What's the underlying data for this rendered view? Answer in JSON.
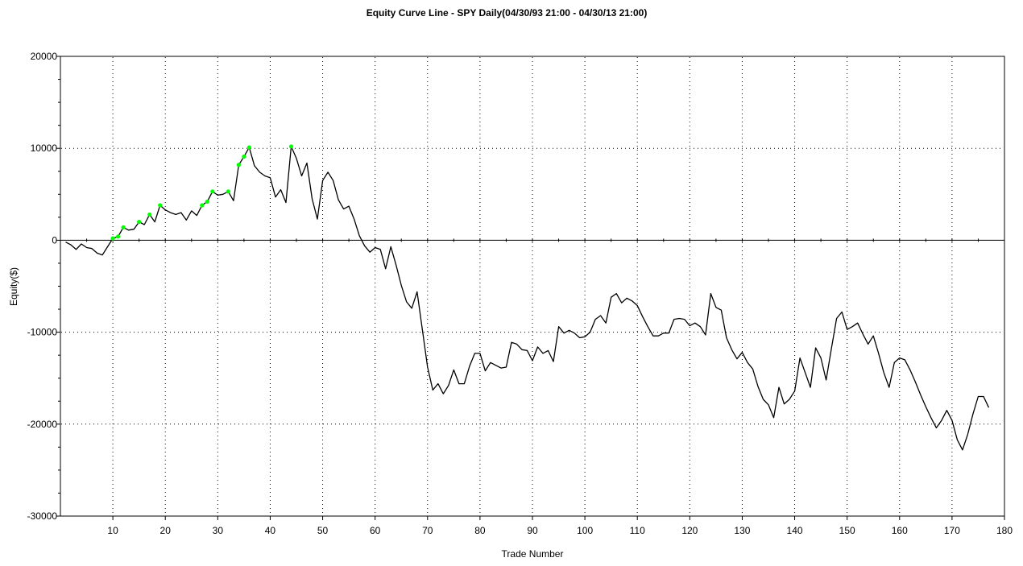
{
  "chart_data": {
    "type": "line",
    "title": "Equity Curve Line - SPY Daily(04/30/93 21:00 - 04/30/13 21:00)",
    "xlabel": "Trade Number",
    "ylabel": "Equity($)",
    "xlim": [
      0,
      180
    ],
    "ylim": [
      -30000,
      20000
    ],
    "x_ticks": [
      10,
      20,
      30,
      40,
      50,
      60,
      70,
      80,
      90,
      100,
      110,
      120,
      130,
      140,
      150,
      160,
      170,
      180
    ],
    "y_ticks": [
      20000,
      10000,
      0,
      -10000,
      -20000,
      -30000
    ],
    "grid": "dotted",
    "line_color": "#000000",
    "highlight_color": "#00ff00",
    "series": [
      {
        "values": [
          [
            1,
            -200
          ],
          [
            2,
            -500
          ],
          [
            3,
            -1000
          ],
          [
            4,
            -400
          ],
          [
            5,
            -800
          ],
          [
            6,
            -900
          ],
          [
            7,
            -1400
          ],
          [
            8,
            -1600
          ],
          [
            9,
            -700
          ],
          [
            10,
            200
          ],
          [
            11,
            400
          ],
          [
            12,
            1400
          ],
          [
            13,
            1100
          ],
          [
            14,
            1200
          ],
          [
            15,
            2000
          ],
          [
            16,
            1700
          ],
          [
            17,
            2800
          ],
          [
            18,
            2000
          ],
          [
            19,
            3800
          ],
          [
            20,
            3300
          ],
          [
            21,
            3000
          ],
          [
            22,
            2800
          ],
          [
            23,
            3000
          ],
          [
            24,
            2200
          ],
          [
            25,
            3200
          ],
          [
            26,
            2700
          ],
          [
            27,
            3800
          ],
          [
            28,
            4200
          ],
          [
            29,
            5300
          ],
          [
            30,
            4900
          ],
          [
            31,
            5000
          ],
          [
            32,
            5300
          ],
          [
            33,
            4300
          ],
          [
            34,
            8200
          ],
          [
            35,
            9100
          ],
          [
            36,
            10100
          ],
          [
            37,
            8100
          ],
          [
            38,
            7400
          ],
          [
            39,
            7000
          ],
          [
            40,
            6800
          ],
          [
            41,
            4700
          ],
          [
            42,
            5500
          ],
          [
            43,
            4100
          ],
          [
            44,
            10200
          ],
          [
            45,
            8900
          ],
          [
            46,
            7000
          ],
          [
            47,
            8400
          ],
          [
            48,
            4500
          ],
          [
            49,
            2300
          ],
          [
            50,
            6500
          ],
          [
            51,
            7400
          ],
          [
            52,
            6500
          ],
          [
            53,
            4400
          ],
          [
            54,
            3400
          ],
          [
            55,
            3700
          ],
          [
            56,
            2300
          ],
          [
            57,
            500
          ],
          [
            58,
            -600
          ],
          [
            59,
            -1300
          ],
          [
            60,
            -800
          ],
          [
            61,
            -1000
          ],
          [
            62,
            -3100
          ],
          [
            63,
            -700
          ],
          [
            64,
            -2700
          ],
          [
            65,
            -4900
          ],
          [
            66,
            -6700
          ],
          [
            67,
            -7400
          ],
          [
            68,
            -5600
          ],
          [
            69,
            -9700
          ],
          [
            70,
            -13800
          ],
          [
            71,
            -16300
          ],
          [
            72,
            -15600
          ],
          [
            73,
            -16700
          ],
          [
            74,
            -15800
          ],
          [
            75,
            -14100
          ],
          [
            76,
            -15600
          ],
          [
            77,
            -15600
          ],
          [
            78,
            -13700
          ],
          [
            79,
            -12300
          ],
          [
            80,
            -12300
          ],
          [
            81,
            -14200
          ],
          [
            82,
            -13300
          ],
          [
            83,
            -13600
          ],
          [
            84,
            -13900
          ],
          [
            85,
            -13800
          ],
          [
            86,
            -11100
          ],
          [
            87,
            -11300
          ],
          [
            88,
            -11900
          ],
          [
            89,
            -12000
          ],
          [
            90,
            -13100
          ],
          [
            91,
            -11600
          ],
          [
            92,
            -12300
          ],
          [
            93,
            -12000
          ],
          [
            94,
            -13200
          ],
          [
            95,
            -9400
          ],
          [
            96,
            -10100
          ],
          [
            97,
            -9800
          ],
          [
            98,
            -10100
          ],
          [
            99,
            -10600
          ],
          [
            100,
            -10500
          ],
          [
            101,
            -10000
          ],
          [
            102,
            -8600
          ],
          [
            103,
            -8200
          ],
          [
            104,
            -9000
          ],
          [
            105,
            -6200
          ],
          [
            106,
            -5800
          ],
          [
            107,
            -6800
          ],
          [
            108,
            -6300
          ],
          [
            109,
            -6600
          ],
          [
            110,
            -7100
          ],
          [
            111,
            -8300
          ],
          [
            112,
            -9400
          ],
          [
            113,
            -10400
          ],
          [
            114,
            -10400
          ],
          [
            115,
            -10100
          ],
          [
            116,
            -10100
          ],
          [
            117,
            -8600
          ],
          [
            118,
            -8500
          ],
          [
            119,
            -8600
          ],
          [
            120,
            -9300
          ],
          [
            121,
            -9000
          ],
          [
            122,
            -9400
          ],
          [
            123,
            -10300
          ],
          [
            124,
            -5800
          ],
          [
            125,
            -7300
          ],
          [
            126,
            -7600
          ],
          [
            127,
            -10600
          ],
          [
            128,
            -11900
          ],
          [
            129,
            -12900
          ],
          [
            130,
            -12200
          ],
          [
            131,
            -13300
          ],
          [
            132,
            -14000
          ],
          [
            133,
            -15900
          ],
          [
            134,
            -17300
          ],
          [
            135,
            -17900
          ],
          [
            136,
            -19300
          ],
          [
            137,
            -16000
          ],
          [
            138,
            -17800
          ],
          [
            139,
            -17300
          ],
          [
            140,
            -16400
          ],
          [
            141,
            -12800
          ],
          [
            142,
            -14400
          ],
          [
            143,
            -16000
          ],
          [
            144,
            -11700
          ],
          [
            145,
            -12800
          ],
          [
            146,
            -15200
          ],
          [
            147,
            -11800
          ],
          [
            148,
            -8500
          ],
          [
            149,
            -7800
          ],
          [
            150,
            -9700
          ],
          [
            151,
            -9400
          ],
          [
            152,
            -9000
          ],
          [
            153,
            -10200
          ],
          [
            154,
            -11300
          ],
          [
            155,
            -10400
          ],
          [
            156,
            -12300
          ],
          [
            157,
            -14400
          ],
          [
            158,
            -16000
          ],
          [
            159,
            -13300
          ],
          [
            160,
            -12800
          ],
          [
            161,
            -13000
          ],
          [
            162,
            -14100
          ],
          [
            163,
            -15400
          ],
          [
            164,
            -16800
          ],
          [
            165,
            -18100
          ],
          [
            166,
            -19300
          ],
          [
            167,
            -20400
          ],
          [
            168,
            -19600
          ],
          [
            169,
            -18500
          ],
          [
            170,
            -19600
          ],
          [
            171,
            -21700
          ],
          [
            172,
            -22800
          ],
          [
            173,
            -21100
          ],
          [
            174,
            -18900
          ],
          [
            175,
            -17000
          ],
          [
            176,
            -17000
          ],
          [
            177,
            -18200
          ]
        ]
      }
    ],
    "highlight_points": [
      [
        10,
        200
      ],
      [
        11,
        400
      ],
      [
        12,
        1400
      ],
      [
        15,
        2000
      ],
      [
        17,
        2800
      ],
      [
        19,
        3800
      ],
      [
        27,
        3800
      ],
      [
        28,
        4200
      ],
      [
        29,
        5300
      ],
      [
        32,
        5300
      ],
      [
        34,
        8200
      ],
      [
        35,
        9100
      ],
      [
        36,
        10100
      ],
      [
        44,
        10200
      ]
    ]
  }
}
